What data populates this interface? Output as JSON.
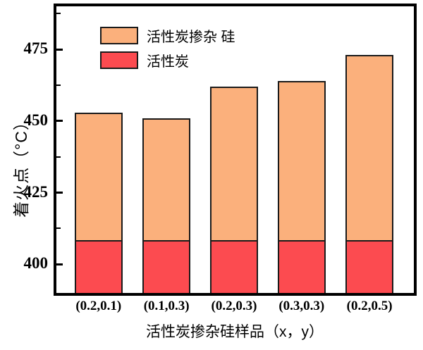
{
  "figure": {
    "y_axis_label": "着火点（°C）",
    "x_axis_label": "活性炭掺杂硅样品（x，y）",
    "legend": [
      {
        "label": "活性炭掺杂 硅",
        "color": "#FBB07C"
      },
      {
        "label": "活性炭",
        "color": "#FC4B50"
      }
    ]
  },
  "chart_data": {
    "type": "bar",
    "stacked": true,
    "categories": [
      "(0.2,0.1)",
      "(0.1,0.3)",
      "(0.2,0.3)",
      "(0.3,0.3)",
      "(0.2,0.5)"
    ],
    "series": [
      {
        "name": "活性炭",
        "color": "#FC4B50",
        "values": [
          408,
          408,
          408,
          408,
          408
        ]
      },
      {
        "name": "活性炭掺杂 硅",
        "color": "#FBB07C",
        "values": [
          453,
          451,
          462,
          464,
          473
        ]
      }
    ],
    "series_values_meaning": "活性炭掺杂 硅 values are the total bar-top ignition points; the 活性炭 segment is drawn from the axis bottom up to its value",
    "title": "",
    "xlabel": "活性炭掺杂硅样品（x，y）",
    "ylabel": "着火点（°C）",
    "ylim": [
      390,
      490
    ],
    "yticks": [
      400,
      425,
      450,
      475
    ],
    "yticks_minor": [
      412.5,
      437.5,
      462.5,
      487.5
    ],
    "grid": false,
    "legend_position": "upper left inside plot"
  }
}
